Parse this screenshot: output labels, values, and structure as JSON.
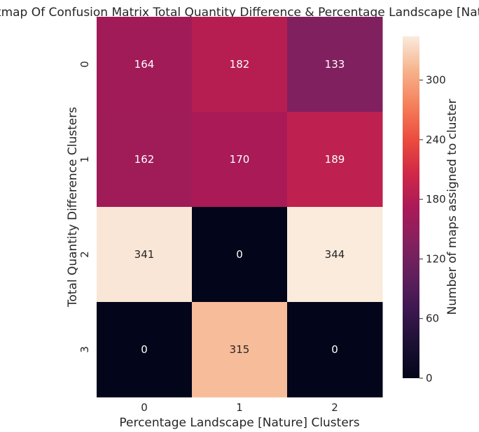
{
  "chart_data": {
    "type": "heatmap",
    "title": "Heatmap Of Confusion Matrix Total Quantity Difference & Percentage Landscape [Nature]",
    "xlabel": "Percentage Landscape [Nature] Clusters",
    "ylabel": "Total Quantity Difference Clusters",
    "x_categories": [
      "0",
      "1",
      "2"
    ],
    "y_categories": [
      "0",
      "1",
      "2",
      "3"
    ],
    "values": [
      [
        164,
        182,
        133
      ],
      [
        162,
        170,
        189
      ],
      [
        341,
        0,
        344
      ],
      [
        0,
        315,
        0
      ]
    ],
    "colorbar": {
      "label": "Number of maps assigned to cluster",
      "range": [
        0,
        344
      ],
      "ticks": [
        "0",
        "60",
        "120",
        "180",
        "240",
        "300"
      ],
      "colormap": "rocket"
    },
    "annotations_shown": true,
    "grid": false
  }
}
